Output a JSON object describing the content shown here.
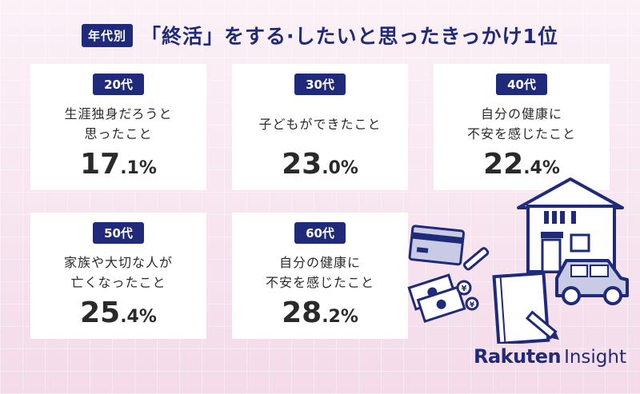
{
  "header": {
    "tag": "年代別",
    "title": "「終活」をする·したいと思ったきっかけ1位"
  },
  "cards": [
    {
      "age": "20代",
      "reason": "生涯独身だろうと\n思ったこと",
      "pct_int": "17",
      "pct_dec": ".1%"
    },
    {
      "age": "30代",
      "reason": "子どもができたこと",
      "pct_int": "23",
      "pct_dec": ".0%"
    },
    {
      "age": "40代",
      "reason": "自分の健康に\n不安を感じたこと",
      "pct_int": "22",
      "pct_dec": ".4%"
    },
    {
      "age": "50代",
      "reason": "家族や大切な人が\n亡くなったこと",
      "pct_int": "25",
      "pct_dec": ".4%"
    },
    {
      "age": "60代",
      "reason": "自分の健康に\n不安を感じたこと",
      "pct_int": "28",
      "pct_dec": ".2%"
    }
  ],
  "logo": {
    "brand": "Rakuten",
    "sub": "Insight"
  },
  "colors": {
    "navy": "#1f2a7a",
    "background": "#f6e6f1",
    "card": "#ffffff"
  },
  "illustration": [
    "house-icon",
    "car-icon",
    "credit-card-icon",
    "pencil-icon",
    "banknotes-icon",
    "yen-coins-icon",
    "notebook-icon"
  ]
}
